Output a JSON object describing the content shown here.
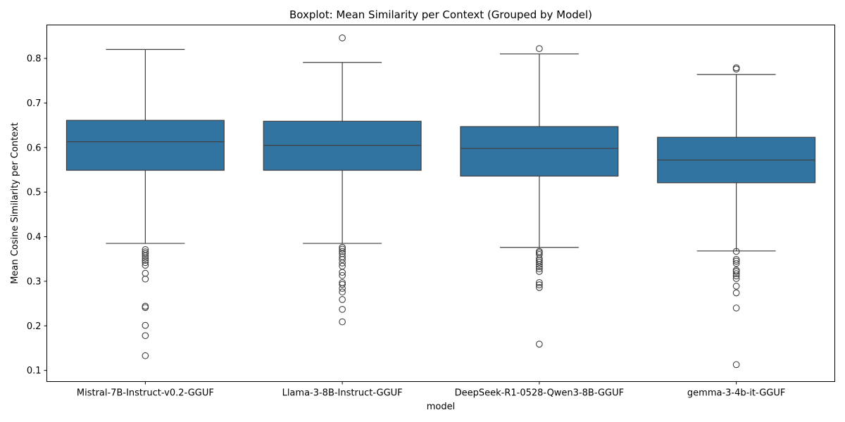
{
  "chart_data": {
    "type": "box",
    "title": "Boxplot: Mean Similarity per Context (Grouped by Model)",
    "xlabel": "model",
    "ylabel": "Mean Cosine Similarity per Context",
    "ylim": [
      0.075,
      0.875
    ],
    "yticks": [
      0.1,
      0.2,
      0.3,
      0.4,
      0.5,
      0.6,
      0.7,
      0.8
    ],
    "grid": false,
    "box_color": "#3274a1",
    "categories": [
      "Mistral-7B-Instruct-v0.2-GGUF",
      "Llama-3-8B-Instruct-GGUF",
      "DeepSeek-R1-0528-Qwen3-8B-GGUF",
      "gemma-3-4b-it-GGUF"
    ],
    "boxes": [
      {
        "whisker_low": 0.385,
        "q1": 0.549,
        "median": 0.613,
        "q3": 0.661,
        "whisker_high": 0.82,
        "outliers": [
          0.371,
          0.366,
          0.362,
          0.357,
          0.352,
          0.347,
          0.342,
          0.336,
          0.318,
          0.305,
          0.244,
          0.241,
          0.201,
          0.178,
          0.133
        ]
      },
      {
        "whisker_low": 0.385,
        "q1": 0.549,
        "median": 0.605,
        "q3": 0.659,
        "whisker_high": 0.791,
        "outliers": [
          0.846,
          0.376,
          0.372,
          0.367,
          0.362,
          0.355,
          0.349,
          0.341,
          0.334,
          0.32,
          0.313,
          0.297,
          0.293,
          0.284,
          0.276,
          0.259,
          0.237,
          0.209
        ]
      },
      {
        "whisker_low": 0.376,
        "q1": 0.536,
        "median": 0.598,
        "q3": 0.647,
        "whisker_high": 0.81,
        "outliers": [
          0.822,
          0.367,
          0.364,
          0.36,
          0.351,
          0.347,
          0.343,
          0.338,
          0.333,
          0.328,
          0.322,
          0.297,
          0.292,
          0.286,
          0.159
        ]
      },
      {
        "whisker_low": 0.368,
        "q1": 0.521,
        "median": 0.572,
        "q3": 0.623,
        "whisker_high": 0.764,
        "outliers": [
          0.779,
          0.776,
          0.367,
          0.349,
          0.345,
          0.34,
          0.325,
          0.322,
          0.317,
          0.312,
          0.306,
          0.289,
          0.274,
          0.24,
          0.113
        ]
      }
    ]
  }
}
